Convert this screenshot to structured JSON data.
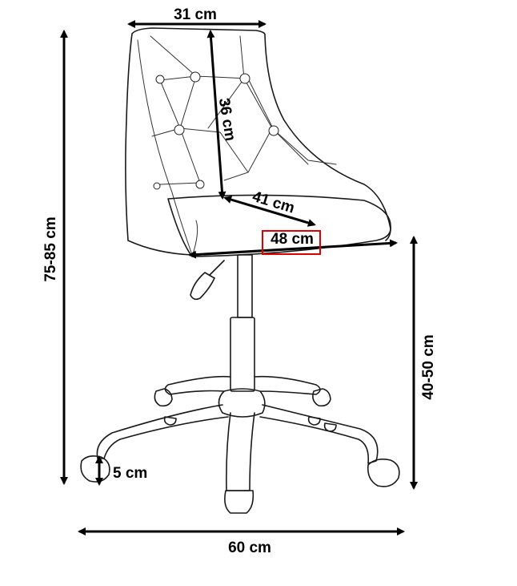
{
  "dimensions": {
    "top_width": "31 cm",
    "back_height": "36 cm",
    "seat_depth": "41 cm",
    "seat_width": "48 cm",
    "total_height": "75-85 cm",
    "seat_height": "40-50 cm",
    "caster": "5 cm",
    "base_width": "60 cm"
  },
  "colors": {
    "line": "#1a1a1a",
    "dimension": "#000000",
    "highlight": "#e00000"
  }
}
